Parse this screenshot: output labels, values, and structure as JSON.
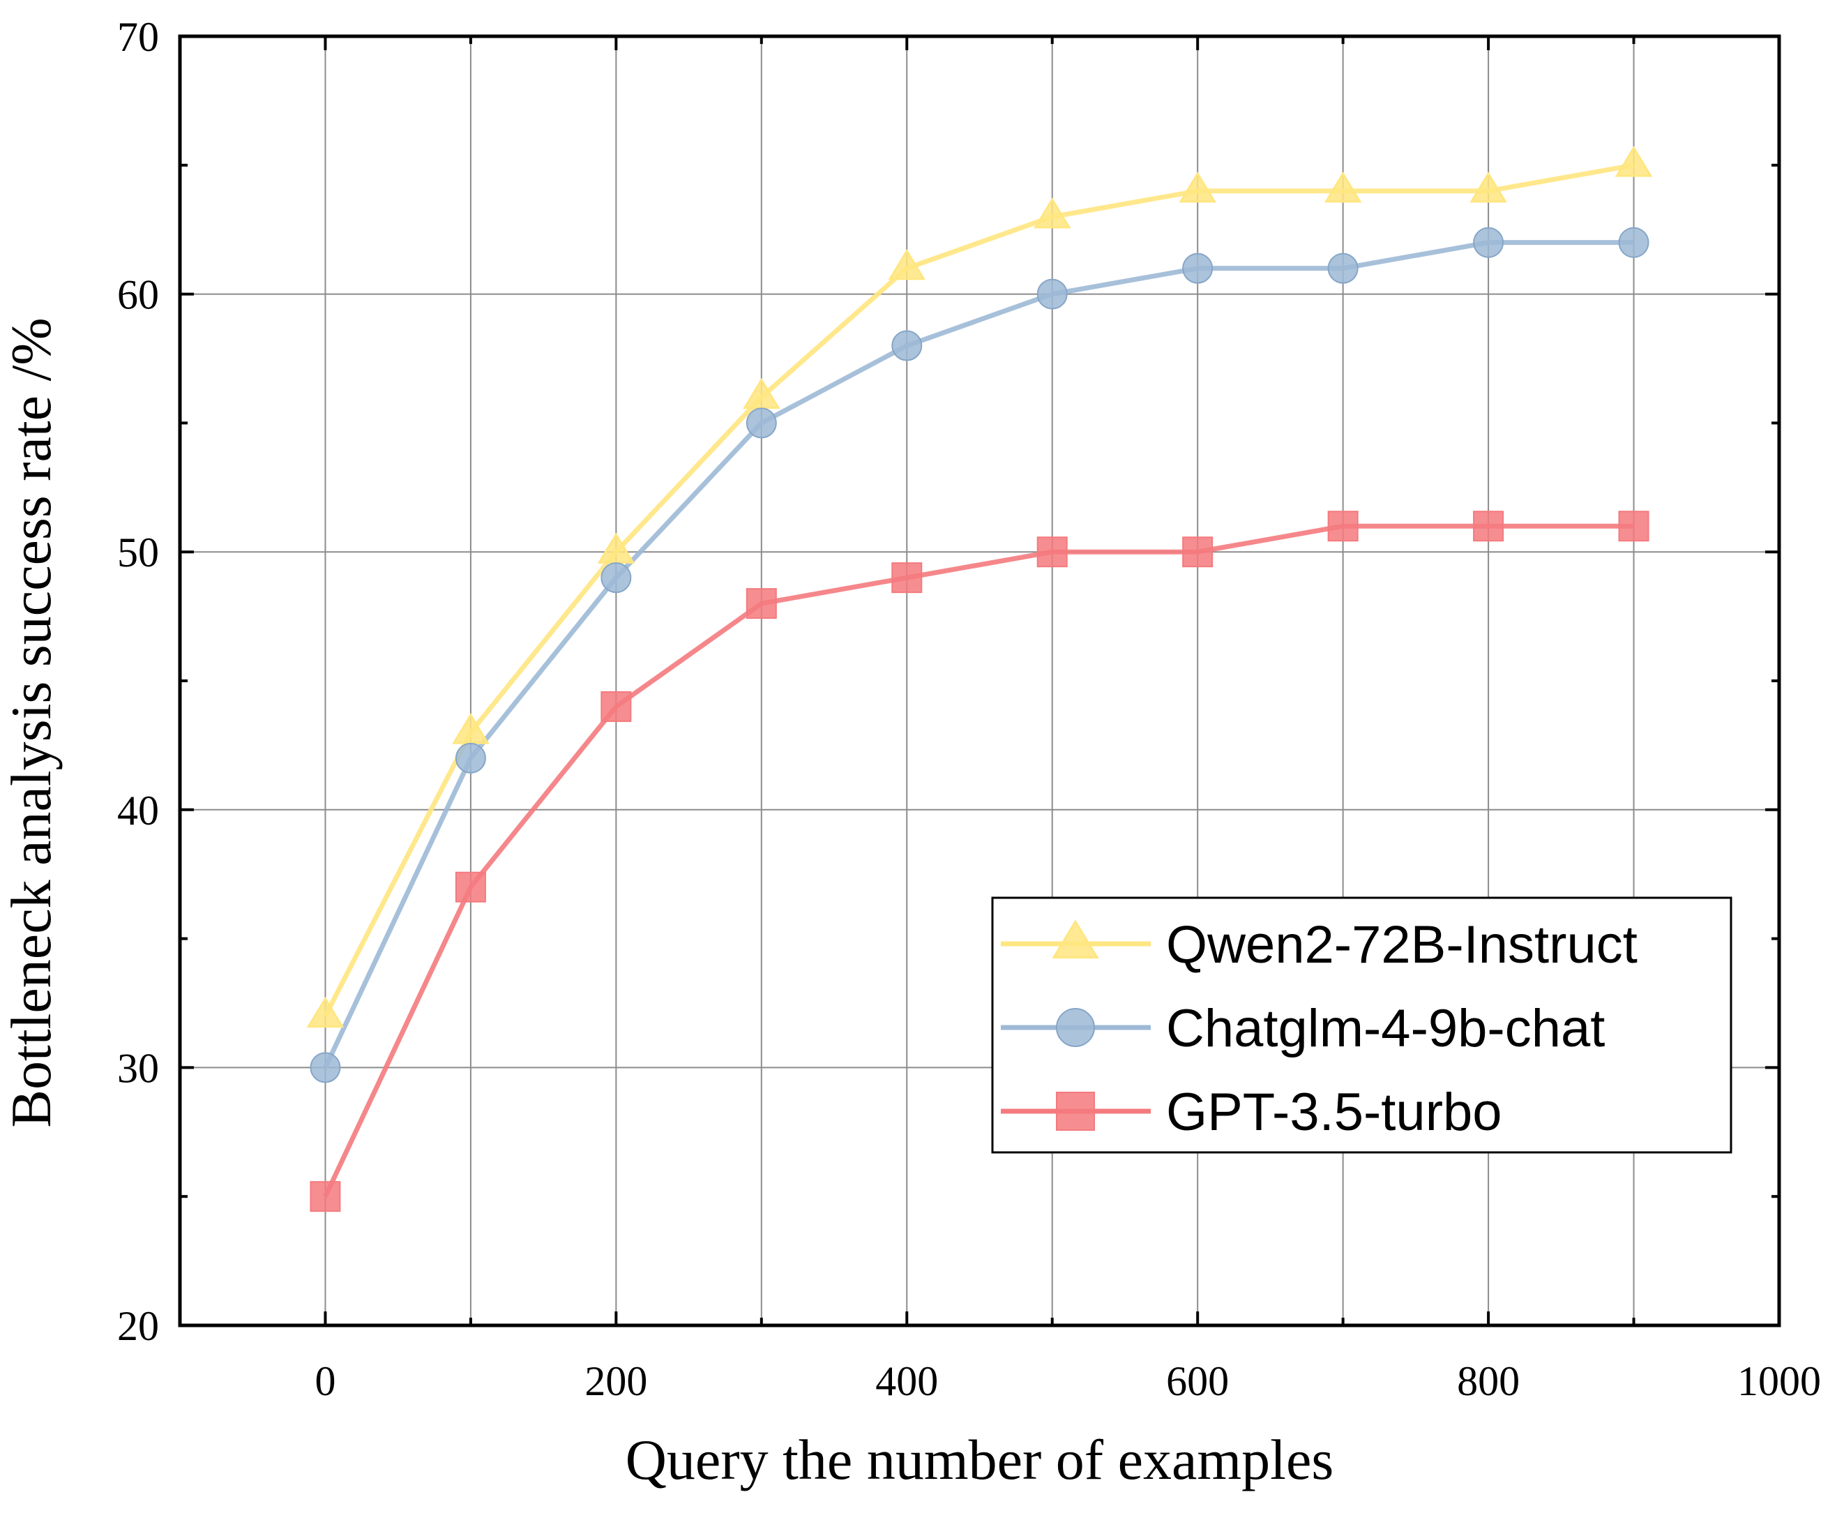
{
  "chart_data": {
    "type": "line",
    "title": "",
    "xlabel": "Query the number of examples",
    "ylabel": "Bottleneck analysis success rate /%",
    "xlim": [
      -100,
      1000
    ],
    "ylim": [
      20,
      70
    ],
    "x_ticks": [
      0,
      200,
      400,
      600,
      800,
      1000
    ],
    "y_ticks": [
      20,
      30,
      40,
      50,
      60,
      70
    ],
    "grid": true,
    "legend_position": "center-right",
    "x": [
      0,
      100,
      200,
      300,
      400,
      500,
      600,
      700,
      800,
      900
    ],
    "series": [
      {
        "name": "Qwen2-72B-Instruct",
        "marker": "triangle",
        "color": "#FFE680",
        "values": [
          32,
          43,
          50,
          56,
          61,
          63,
          64,
          64,
          64,
          65
        ]
      },
      {
        "name": "Chatglm-4-9b-chat",
        "marker": "circle",
        "color": "#9DB9D6",
        "values": [
          30,
          42,
          49,
          55,
          58,
          60,
          61,
          61,
          62,
          62
        ]
      },
      {
        "name": "GPT-3.5-turbo",
        "marker": "square",
        "color": "#F47A7E",
        "values": [
          25,
          37,
          44,
          48,
          49,
          50,
          50,
          51,
          51,
          51
        ]
      }
    ]
  }
}
